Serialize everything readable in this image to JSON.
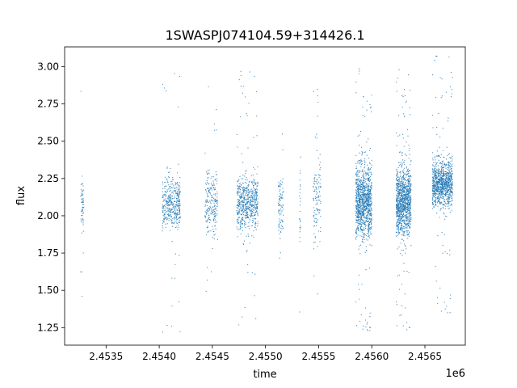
{
  "chart_data": {
    "type": "scatter",
    "title": "1SWASPJ074104.59+314426.1",
    "xlabel": "time",
    "ylabel": "flux",
    "x_offset_label": "1e6",
    "xlim": [
      2.45311,
      2.45688
    ],
    "ylim": [
      1.1325,
      3.1325
    ],
    "x_unit_multiplier": 1000000,
    "x_ticks": [
      {
        "value": 2.4535,
        "label": "2.4535"
      },
      {
        "value": 2.454,
        "label": "2.4540"
      },
      {
        "value": 2.4545,
        "label": "2.4545"
      },
      {
        "value": 2.455,
        "label": "2.4550"
      },
      {
        "value": 2.4555,
        "label": "2.4555"
      },
      {
        "value": 2.456,
        "label": "2.4560"
      },
      {
        "value": 2.4565,
        "label": "2.4565"
      }
    ],
    "y_ticks": [
      {
        "value": 1.25,
        "label": "1.25"
      },
      {
        "value": 1.5,
        "label": "1.50"
      },
      {
        "value": 1.75,
        "label": "1.75"
      },
      {
        "value": 2.0,
        "label": "2.00"
      },
      {
        "value": 2.25,
        "label": "2.25"
      },
      {
        "value": 2.5,
        "label": "2.50"
      },
      {
        "value": 2.75,
        "label": "2.75"
      },
      {
        "value": 3.0,
        "label": "3.00"
      }
    ],
    "grid": false,
    "marker_color": "#1f77b4",
    "clusters": [
      {
        "x_start": 2.45326,
        "x_end": 2.45329,
        "center": 2.07,
        "spread": 0.14,
        "n": 60
      },
      {
        "x_start": 2.45403,
        "x_end": 2.4542,
        "center": 2.08,
        "spread": 0.17,
        "n": 420
      },
      {
        "x_start": 2.45443,
        "x_end": 2.45455,
        "center": 2.08,
        "spread": 0.2,
        "n": 220
      },
      {
        "x_start": 2.45473,
        "x_end": 2.45493,
        "center": 2.09,
        "spread": 0.18,
        "n": 620
      },
      {
        "x_start": 2.45512,
        "x_end": 2.45517,
        "center": 2.07,
        "spread": 0.2,
        "n": 90
      },
      {
        "x_start": 2.45532,
        "x_end": 2.45533,
        "center": 2.05,
        "spread": 0.3,
        "n": 25
      },
      {
        "x_start": 2.45545,
        "x_end": 2.45552,
        "center": 2.1,
        "spread": 0.3,
        "n": 120
      },
      {
        "x_start": 2.45585,
        "x_end": 2.456,
        "center": 2.1,
        "spread": 0.24,
        "n": 1100
      },
      {
        "x_start": 2.45623,
        "x_end": 2.45637,
        "center": 2.1,
        "spread": 0.23,
        "n": 1100
      },
      {
        "x_start": 2.45657,
        "x_end": 2.45676,
        "center": 2.22,
        "spread": 0.16,
        "n": 1000
      }
    ]
  }
}
